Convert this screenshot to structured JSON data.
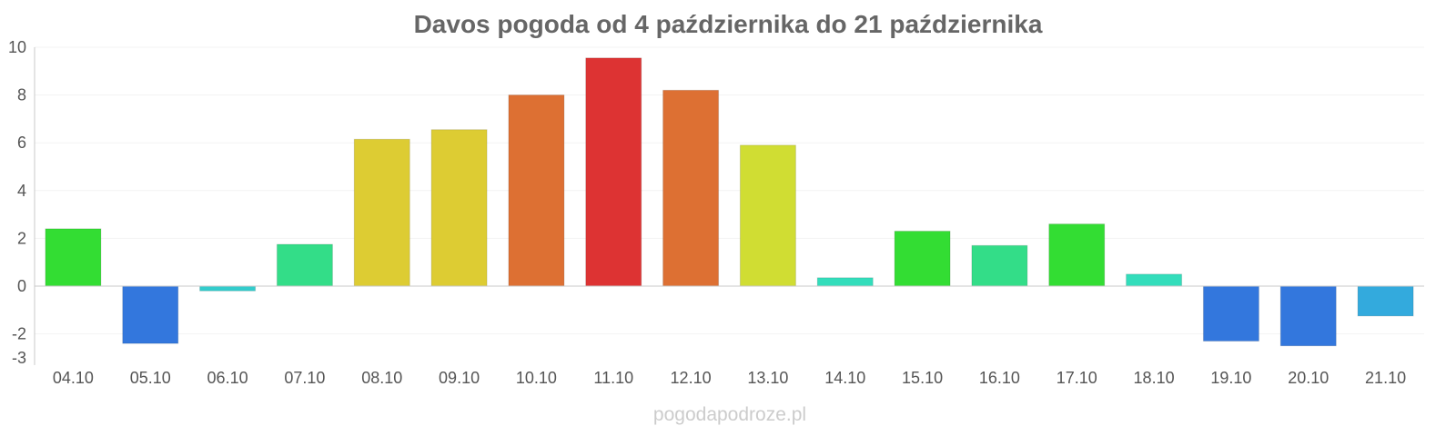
{
  "chart_data": {
    "type": "bar",
    "title": "Davos pogoda od 4 października do 21 października",
    "categories": [
      "04.10",
      "05.10",
      "06.10",
      "07.10",
      "08.10",
      "09.10",
      "10.10",
      "11.10",
      "12.10",
      "13.10",
      "14.10",
      "15.10",
      "16.10",
      "17.10",
      "18.10",
      "19.10",
      "20.10",
      "21.10"
    ],
    "values": [
      2.4,
      -2.4,
      -0.2,
      1.75,
      6.15,
      6.55,
      8.0,
      9.55,
      8.2,
      5.9,
      0.35,
      2.3,
      1.7,
      2.6,
      0.5,
      -2.3,
      -2.5,
      -1.25
    ],
    "colors": [
      "#33dd33",
      "#3377dd",
      "#33cccc",
      "#33dd88",
      "#ddcc33",
      "#ddcc33",
      "#dd7033",
      "#dd3333",
      "#dd7033",
      "#d0dd33",
      "#33ddbb",
      "#33dd33",
      "#33dd88",
      "#33dd33",
      "#33ddbb",
      "#3377dd",
      "#3377dd",
      "#33aadd"
    ],
    "y_ticks": [
      10,
      8,
      6,
      4,
      2,
      0,
      -2,
      -3
    ],
    "ylim": [
      -3,
      10
    ],
    "xlabel": "",
    "ylabel": "",
    "grid": true,
    "legend": "none"
  },
  "watermark": "pogodapodroze.pl"
}
